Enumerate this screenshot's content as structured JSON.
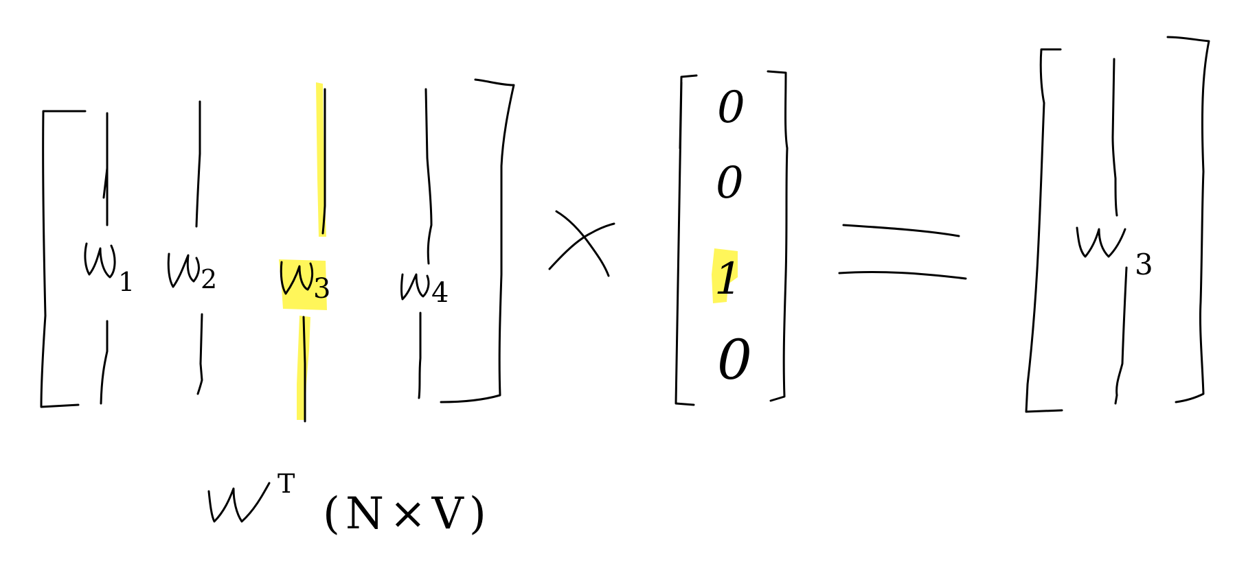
{
  "highlight_color": "#fff65a",
  "ink_color": "#000000",
  "matrix": {
    "label": "W",
    "superscript": "T",
    "dims": "(N×V)",
    "columns": [
      {
        "symbol": "w",
        "index": "1",
        "highlighted": false
      },
      {
        "symbol": "w",
        "index": "2",
        "highlighted": false
      },
      {
        "symbol": "w",
        "index": "3",
        "highlighted": true
      },
      {
        "symbol": "w",
        "index": "4",
        "highlighted": false
      }
    ]
  },
  "operator_multiply": "×",
  "one_hot": {
    "entries": [
      {
        "value": "0",
        "highlighted": false
      },
      {
        "value": "0",
        "highlighted": false
      },
      {
        "value": "1",
        "highlighted": true
      },
      {
        "value": "0",
        "highlighted": false
      }
    ]
  },
  "operator_equals": "=",
  "result": {
    "symbol": "w",
    "index": "3"
  }
}
